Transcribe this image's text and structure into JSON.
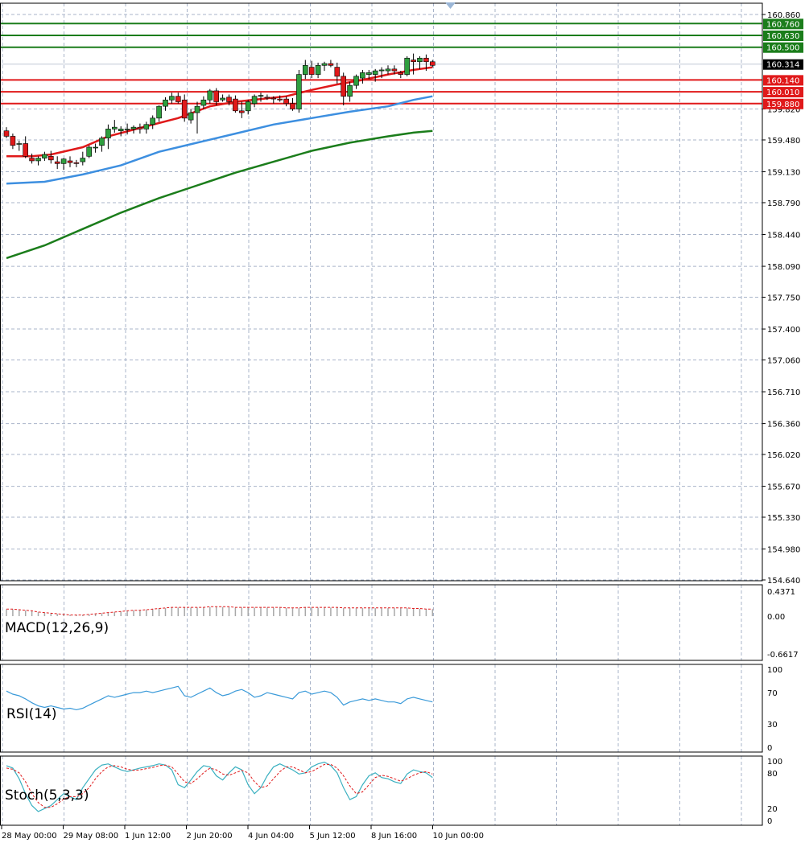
{
  "chart_data": {
    "type": "candlestick",
    "symbol_panel": "main",
    "price_axis": {
      "range": [
        154.64,
        160.86
      ],
      "tick_labels": [
        "160.860",
        "159.820",
        "159.480",
        "159.130",
        "158.790",
        "158.440",
        "158.090",
        "157.750",
        "157.400",
        "157.060",
        "156.710",
        "156.360",
        "156.020",
        "155.670",
        "155.330",
        "154.980",
        "154.640"
      ]
    },
    "time_axis": {
      "labels": [
        "28 May 00:00",
        "29 May 08:00",
        "1 Jun 12:00",
        "2 Jun 20:00",
        "4 Jun 04:00",
        "5 Jun 12:00",
        "8 Jun 16:00",
        "10 Jun 00:00"
      ]
    },
    "current_price": "160.314",
    "resistance_levels": [
      {
        "label": "160.760",
        "value": 160.76
      },
      {
        "label": "160.630",
        "value": 160.63
      },
      {
        "label": "160.500",
        "value": 160.5
      }
    ],
    "support_levels": [
      {
        "label": "160.140",
        "value": 160.14
      },
      {
        "label": "160.010",
        "value": 160.01
      },
      {
        "label": "159.880",
        "value": 159.88
      }
    ],
    "colors": {
      "bull": "#2e9e3e",
      "bear": "#e0191a",
      "resistance": "#1b7d1b",
      "support": "#e0191a",
      "ma_fast": "#e0191a",
      "ma_mid": "#3d8fe0",
      "ma_slow": "#1b7d1b",
      "grid": "#a9b4c9",
      "macd": "#e0191a",
      "rsi": "#3a9ad9",
      "stoch_main": "#3ab0c0",
      "stoch_signal": "#e0191a"
    },
    "candles": [
      [
        159.58,
        159.62,
        159.5,
        159.52
      ],
      [
        159.52,
        159.55,
        159.38,
        159.42
      ],
      [
        159.44,
        159.47,
        159.36,
        159.44
      ],
      [
        159.44,
        159.52,
        159.28,
        159.3
      ],
      [
        159.28,
        159.33,
        159.22,
        159.25
      ],
      [
        159.25,
        159.3,
        159.2,
        159.28
      ],
      [
        159.28,
        159.35,
        159.25,
        159.32
      ],
      [
        159.3,
        159.36,
        159.22,
        159.26
      ],
      [
        159.24,
        159.3,
        159.16,
        159.22
      ],
      [
        159.22,
        159.28,
        159.15,
        159.27
      ],
      [
        159.25,
        159.3,
        159.18,
        159.23
      ],
      [
        159.23,
        159.26,
        159.18,
        159.22
      ],
      [
        159.24,
        159.35,
        159.2,
        159.28
      ],
      [
        159.3,
        159.42,
        159.28,
        159.4
      ],
      [
        159.4,
        159.44,
        159.34,
        159.4
      ],
      [
        159.42,
        159.52,
        159.35,
        159.5
      ],
      [
        159.5,
        159.65,
        159.38,
        159.6
      ],
      [
        159.6,
        159.7,
        159.56,
        159.62
      ],
      [
        159.58,
        159.63,
        159.52,
        159.6
      ],
      [
        159.6,
        159.66,
        159.54,
        159.6
      ],
      [
        159.6,
        159.64,
        159.55,
        159.62
      ],
      [
        159.62,
        159.66,
        159.55,
        159.6
      ],
      [
        159.6,
        159.68,
        159.55,
        159.65
      ],
      [
        159.65,
        159.75,
        159.6,
        159.72
      ],
      [
        159.72,
        159.86,
        159.68,
        159.85
      ],
      [
        159.85,
        159.95,
        159.8,
        159.92
      ],
      [
        159.92,
        160.0,
        159.88,
        159.96
      ],
      [
        159.96,
        160.0,
        159.88,
        159.9
      ],
      [
        159.92,
        159.98,
        159.68,
        159.72
      ],
      [
        159.7,
        159.82,
        159.66,
        159.78
      ],
      [
        159.78,
        159.9,
        159.55,
        159.85
      ],
      [
        159.86,
        159.96,
        159.82,
        159.92
      ],
      [
        159.92,
        160.04,
        159.88,
        160.02
      ],
      [
        160.02,
        160.05,
        159.86,
        159.9
      ],
      [
        159.92,
        159.98,
        159.9,
        159.94
      ],
      [
        159.95,
        159.98,
        159.86,
        159.9
      ],
      [
        159.93,
        159.97,
        159.78,
        159.8
      ],
      [
        159.8,
        159.9,
        159.72,
        159.78
      ],
      [
        159.8,
        159.92,
        159.76,
        159.9
      ],
      [
        159.88,
        159.98,
        159.84,
        159.96
      ],
      [
        159.96,
        160.0,
        159.9,
        159.97
      ],
      [
        159.95,
        159.98,
        159.92,
        159.94
      ],
      [
        159.94,
        159.96,
        159.88,
        159.93
      ],
      [
        159.93,
        159.97,
        159.9,
        159.92
      ],
      [
        159.93,
        159.96,
        159.85,
        159.88
      ],
      [
        159.88,
        159.94,
        159.8,
        159.82
      ],
      [
        159.82,
        160.25,
        159.78,
        160.2
      ],
      [
        160.2,
        160.36,
        160.15,
        160.3
      ],
      [
        160.28,
        160.35,
        160.16,
        160.2
      ],
      [
        160.2,
        160.33,
        160.16,
        160.3
      ],
      [
        160.3,
        160.34,
        160.24,
        160.32
      ],
      [
        160.32,
        160.36,
        160.28,
        160.3
      ],
      [
        160.28,
        160.33,
        160.1,
        160.18
      ],
      [
        160.18,
        160.22,
        159.86,
        159.96
      ],
      [
        159.96,
        160.12,
        159.9,
        160.08
      ],
      [
        160.08,
        160.2,
        160.04,
        160.18
      ],
      [
        160.16,
        160.25,
        160.1,
        160.22
      ],
      [
        160.2,
        160.25,
        160.15,
        160.22
      ],
      [
        160.2,
        160.26,
        160.12,
        160.24
      ],
      [
        160.24,
        160.28,
        160.16,
        160.25
      ],
      [
        160.24,
        160.3,
        160.2,
        160.26
      ],
      [
        160.26,
        160.3,
        160.2,
        160.24
      ],
      [
        160.22,
        160.24,
        160.16,
        160.2
      ],
      [
        160.2,
        160.4,
        160.18,
        160.38
      ],
      [
        160.36,
        160.43,
        160.2,
        160.34
      ],
      [
        160.34,
        160.4,
        160.26,
        160.38
      ],
      [
        160.38,
        160.42,
        160.24,
        160.34
      ],
      [
        160.34,
        160.36,
        160.28,
        160.3
      ]
    ],
    "moving_averages": [
      {
        "color_key": "ma_fast",
        "points": [
          [
            0,
            159.3
          ],
          [
            4,
            159.3
          ],
          [
            7,
            159.32
          ],
          [
            12,
            159.4
          ],
          [
            16,
            159.52
          ],
          [
            22,
            159.63
          ],
          [
            27,
            159.72
          ],
          [
            32,
            159.85
          ],
          [
            36,
            159.9
          ],
          [
            40,
            159.93
          ],
          [
            44,
            159.96
          ],
          [
            48,
            160.03
          ],
          [
            52,
            160.09
          ],
          [
            56,
            160.14
          ],
          [
            60,
            160.2
          ],
          [
            64,
            160.25
          ],
          [
            67,
            160.28
          ]
        ]
      },
      {
        "color_key": "ma_mid",
        "points": [
          [
            0,
            159.0
          ],
          [
            6,
            159.02
          ],
          [
            12,
            159.1
          ],
          [
            18,
            159.2
          ],
          [
            24,
            159.35
          ],
          [
            30,
            159.45
          ],
          [
            36,
            159.55
          ],
          [
            42,
            159.65
          ],
          [
            48,
            159.72
          ],
          [
            54,
            159.79
          ],
          [
            60,
            159.85
          ],
          [
            64,
            159.92
          ],
          [
            67,
            159.96
          ]
        ]
      },
      {
        "color_key": "ma_slow",
        "points": [
          [
            0,
            158.18
          ],
          [
            6,
            158.32
          ],
          [
            12,
            158.5
          ],
          [
            18,
            158.68
          ],
          [
            24,
            158.84
          ],
          [
            30,
            158.98
          ],
          [
            36,
            159.12
          ],
          [
            42,
            159.24
          ],
          [
            48,
            159.36
          ],
          [
            54,
            159.45
          ],
          [
            60,
            159.52
          ],
          [
            64,
            159.56
          ],
          [
            67,
            159.58
          ]
        ]
      }
    ],
    "macd": {
      "label": "MACD(12,26,9)",
      "tick_labels": [
        "0.4371",
        "0.00",
        "-0.6617"
      ],
      "range": [
        -0.6617,
        0.4371
      ],
      "values": [
        0.12,
        0.12,
        0.11,
        0.1,
        0.09,
        0.07,
        0.06,
        0.05,
        0.04,
        0.03,
        0.02,
        0.02,
        0.02,
        0.03,
        0.04,
        0.05,
        0.06,
        0.07,
        0.08,
        0.09,
        0.1,
        0.1,
        0.11,
        0.12,
        0.13,
        0.14,
        0.15,
        0.15,
        0.15,
        0.15,
        0.15,
        0.15,
        0.16,
        0.16,
        0.16,
        0.16,
        0.15,
        0.15,
        0.15,
        0.15,
        0.15,
        0.15,
        0.15,
        0.15,
        0.14,
        0.14,
        0.14,
        0.15,
        0.15,
        0.15,
        0.15,
        0.15,
        0.15,
        0.14,
        0.14,
        0.14,
        0.14,
        0.14,
        0.14,
        0.14,
        0.14,
        0.14,
        0.14,
        0.14,
        0.13,
        0.13,
        0.12,
        0.12
      ]
    },
    "rsi": {
      "label": "RSI(14)",
      "tick_labels": [
        "100",
        "70",
        "30",
        "0"
      ],
      "range": [
        0,
        100
      ],
      "values": [
        72,
        68,
        66,
        62,
        57,
        53,
        51,
        53,
        51,
        49,
        50,
        48,
        50,
        54,
        58,
        62,
        66,
        64,
        66,
        68,
        70,
        70,
        72,
        70,
        72,
        74,
        76,
        78,
        66,
        64,
        68,
        72,
        76,
        70,
        66,
        68,
        72,
        74,
        70,
        64,
        66,
        70,
        68,
        66,
        64,
        62,
        70,
        72,
        68,
        70,
        72,
        70,
        64,
        54,
        58,
        60,
        62,
        60,
        62,
        60,
        58,
        58,
        56,
        62,
        64,
        62,
        60,
        58
      ]
    },
    "stoch": {
      "label": "Stoch(5,3,3)",
      "tick_labels": [
        "100",
        "80",
        "20",
        "0"
      ],
      "range": [
        0,
        100
      ],
      "main": [
        92,
        88,
        70,
        45,
        25,
        15,
        20,
        25,
        35,
        45,
        40,
        35,
        55,
        70,
        85,
        93,
        95,
        90,
        85,
        82,
        85,
        88,
        90,
        92,
        95,
        93,
        85,
        60,
        55,
        68,
        82,
        92,
        90,
        75,
        68,
        80,
        90,
        85,
        60,
        45,
        55,
        75,
        90,
        95,
        90,
        85,
        78,
        80,
        90,
        95,
        98,
        92,
        80,
        55,
        35,
        40,
        60,
        75,
        80,
        72,
        70,
        65,
        62,
        78,
        85,
        82,
        80,
        72
      ],
      "signal": [
        88,
        86,
        80,
        65,
        45,
        30,
        22,
        22,
        28,
        36,
        40,
        40,
        45,
        55,
        70,
        82,
        90,
        92,
        90,
        86,
        84,
        85,
        87,
        89,
        92,
        93,
        90,
        78,
        65,
        62,
        70,
        80,
        88,
        85,
        78,
        76,
        80,
        84,
        80,
        65,
        55,
        58,
        70,
        82,
        90,
        90,
        85,
        80,
        82,
        88,
        94,
        94,
        88,
        75,
        58,
        45,
        48,
        60,
        72,
        76,
        74,
        70,
        66,
        70,
        76,
        80,
        82,
        78
      ]
    }
  }
}
